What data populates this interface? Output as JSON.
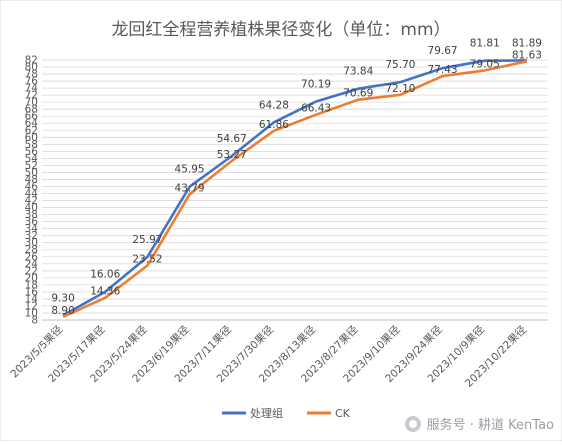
{
  "chart_data": {
    "type": "line",
    "title": "龙回红全程营养植株果径变化（单位：mm）",
    "xlabel": "",
    "ylabel": "",
    "ylim": [
      8,
      82
    ],
    "ytick_step": 2,
    "grid": true,
    "legend_placement": "bottom",
    "categories": [
      "2023/5/5果径",
      "2023/5/17果径",
      "2023/5/24果径",
      "2023/6/19果径",
      "2023/7/11果径",
      "2023/7/30果径",
      "2023/8/13果径",
      "2023/8/27果径",
      "2023/9/10果径",
      "2023/9/24果径",
      "2023/10/9果径",
      "2023/10/22果径"
    ],
    "series": [
      {
        "name": "处理组",
        "color": "#4472C4",
        "values": [
          9.3,
          16.06,
          25.97,
          45.95,
          54.67,
          64.28,
          70.19,
          73.84,
          75.7,
          79.67,
          81.81,
          81.89
        ],
        "labels": [
          "9.30",
          "16.06",
          "25.97",
          "45.95",
          "54.67",
          "64.28",
          "70.19",
          "73.84",
          "75.70",
          "79.67",
          "81.81",
          "81.89"
        ]
      },
      {
        "name": "CK",
        "color": "#ED7D31",
        "values": [
          8.9,
          14.36,
          23.52,
          43.79,
          53.27,
          61.86,
          66.43,
          70.69,
          72.1,
          77.43,
          79.05,
          81.63
        ],
        "labels": [
          "8.90",
          "14.36",
          "23.52",
          "43.79",
          "53.27",
          "61.86",
          "66.43",
          "70.69",
          "72.10",
          "77.43",
          "79.05",
          "81.63"
        ]
      }
    ]
  },
  "watermark": {
    "text": "服务号 · 耕道 KenTao",
    "icon": "wechat-icon"
  }
}
